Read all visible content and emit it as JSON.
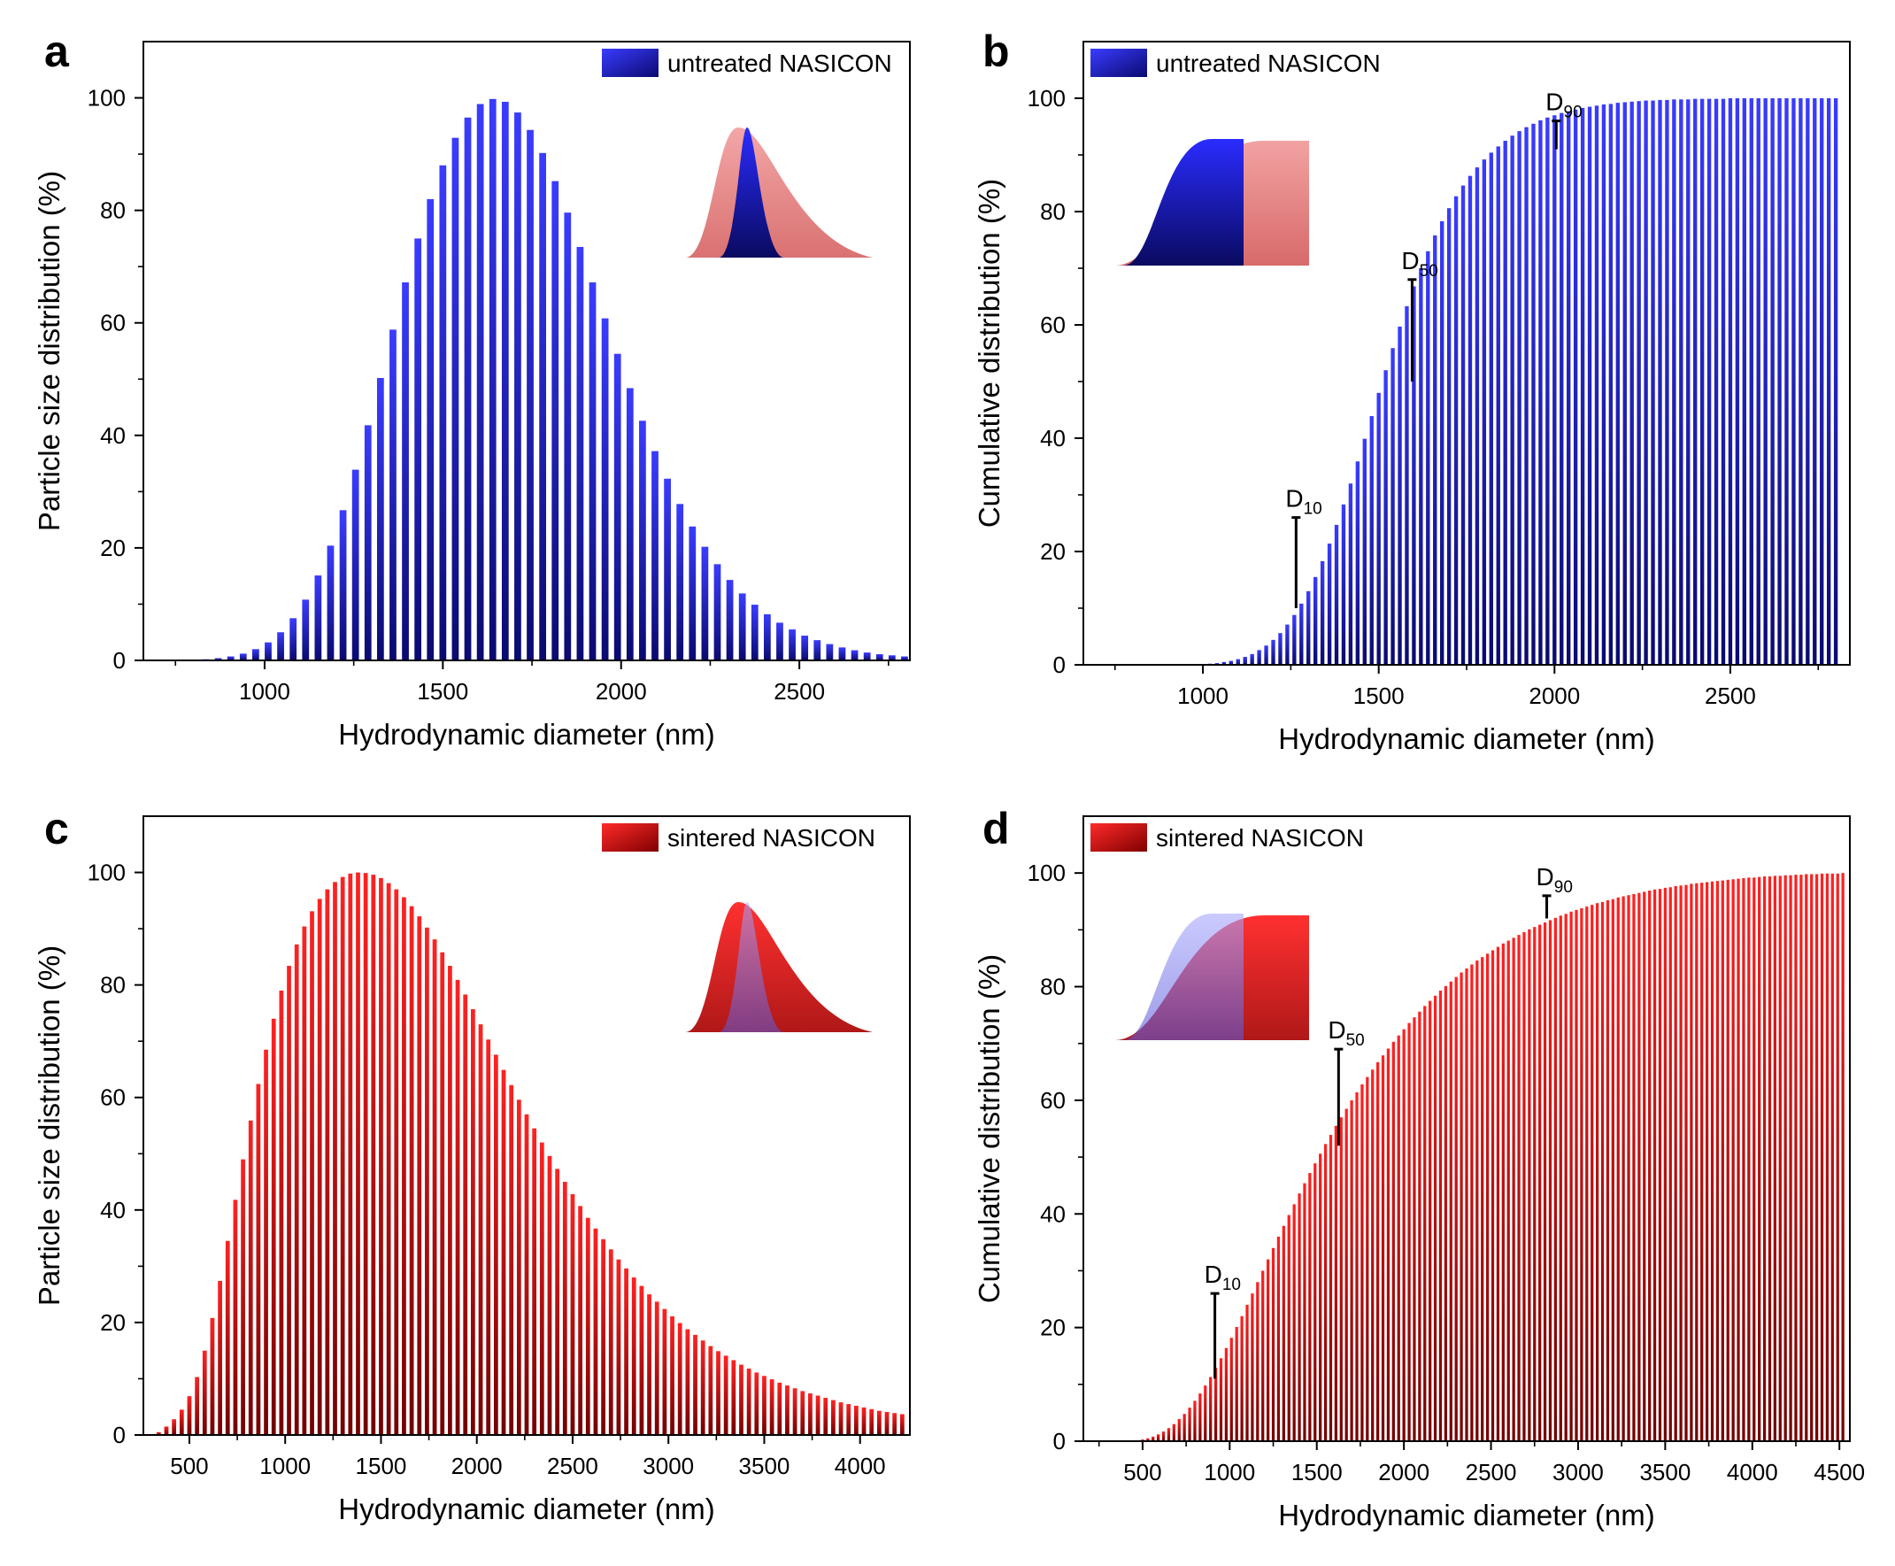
{
  "colors": {
    "blue_light": "#3a3cff",
    "blue_dark": "#0a0a78",
    "red_light": "#ff2020",
    "red_dark": "#7a0000",
    "inset_red": "#f08080",
    "inset_blue": "#6b6bff"
  },
  "chart_data": [
    {
      "id": "a",
      "panel_letter": "a",
      "type": "bar",
      "kind": "distribution",
      "series_name": "untreated NASICON",
      "color": "blue",
      "xlabel": "Hydrodynamic diameter (nm)",
      "ylabel": "Particle size distribution (%)",
      "xlim": [
        660,
        2810
      ],
      "ylim": [
        0,
        110
      ],
      "xticks": [
        1000,
        1500,
        2000,
        2500
      ],
      "xminor": [
        750,
        1250,
        1750,
        2250,
        2750
      ],
      "yticks": [
        0,
        20,
        40,
        60,
        80,
        100
      ],
      "yminor": [
        10,
        30,
        50,
        70,
        90
      ],
      "legend_position": "top-right",
      "inset": "distribution-comparison",
      "x": [
        800,
        835,
        870,
        905,
        940,
        975,
        1010,
        1045,
        1080,
        1115,
        1150,
        1185,
        1220,
        1255,
        1290,
        1325,
        1360,
        1395,
        1430,
        1465,
        1500,
        1535,
        1570,
        1605,
        1640,
        1675,
        1710,
        1745,
        1780,
        1815,
        1850,
        1885,
        1920,
        1955,
        1990,
        2025,
        2060,
        2095,
        2130,
        2165,
        2200,
        2235,
        2270,
        2305,
        2340,
        2375,
        2410,
        2445,
        2480,
        2515,
        2550,
        2585,
        2620,
        2655,
        2690,
        2725,
        2760,
        2795
      ],
      "values": [
        0.1,
        0.2,
        0.4,
        0.7,
        1.2,
        2.0,
        3.2,
        5.0,
        7.5,
        10.8,
        15.1,
        20.4,
        26.7,
        33.9,
        41.8,
        50.2,
        58.8,
        67.2,
        75.0,
        82.0,
        88.0,
        92.9,
        96.5,
        98.9,
        99.8,
        99.3,
        97.4,
        94.3,
        90.2,
        85.2,
        79.6,
        73.5,
        67.2,
        60.8,
        54.5,
        48.4,
        42.6,
        37.2,
        32.3,
        27.8,
        23.8,
        20.2,
        17.1,
        14.3,
        11.9,
        9.9,
        8.2,
        6.7,
        5.5,
        4.4,
        3.6,
        2.9,
        2.3,
        1.8,
        1.4,
        1.1,
        0.9,
        0.7
      ]
    },
    {
      "id": "b",
      "panel_letter": "b",
      "type": "bar",
      "kind": "cumulative",
      "series_name": "untreated NASICON",
      "color": "blue",
      "xlabel": "Hydrodynamic diameter (nm)",
      "ylabel": "Cumulative distribution (%)",
      "xlim": [
        660,
        2840
      ],
      "ylim": [
        0,
        110
      ],
      "xticks": [
        1000,
        1500,
        2000,
        2500
      ],
      "xminor": [
        750,
        1250,
        1750,
        2250,
        2750
      ],
      "yticks": [
        0,
        20,
        40,
        60,
        80,
        100
      ],
      "yminor": [
        10,
        30,
        50,
        70,
        90
      ],
      "legend_position": "top-left",
      "inset": "cumulative-comparison",
      "x": [
        1000,
        1020,
        1040,
        1060,
        1080,
        1100,
        1120,
        1140,
        1160,
        1180,
        1200,
        1220,
        1240,
        1260,
        1280,
        1300,
        1320,
        1340,
        1360,
        1380,
        1400,
        1420,
        1440,
        1460,
        1480,
        1500,
        1520,
        1540,
        1560,
        1580,
        1600,
        1620,
        1640,
        1660,
        1680,
        1700,
        1720,
        1740,
        1760,
        1780,
        1800,
        1820,
        1840,
        1860,
        1880,
        1900,
        1920,
        1940,
        1960,
        1980,
        2000,
        2020,
        2040,
        2060,
        2080,
        2100,
        2120,
        2140,
        2160,
        2180,
        2200,
        2220,
        2240,
        2260,
        2280,
        2300,
        2320,
        2340,
        2360,
        2380,
        2400,
        2420,
        2440,
        2460,
        2480,
        2500,
        2520,
        2540,
        2560,
        2580,
        2600,
        2620,
        2640,
        2660,
        2680,
        2700,
        2720,
        2740,
        2760,
        2780,
        2800
      ],
      "values": [
        0.1,
        0.2,
        0.3,
        0.5,
        0.7,
        1.0,
        1.4,
        1.9,
        2.6,
        3.4,
        4.4,
        5.6,
        7.1,
        8.8,
        10.8,
        13.0,
        15.5,
        18.3,
        21.4,
        24.7,
        28.3,
        32.0,
        35.9,
        39.9,
        43.9,
        48.0,
        52.0,
        55.9,
        59.7,
        63.3,
        66.8,
        70.0,
        73.0,
        75.8,
        78.3,
        80.6,
        82.7,
        84.6,
        86.3,
        87.8,
        89.2,
        90.4,
        91.5,
        92.5,
        93.4,
        94.2,
        94.9,
        95.5,
        96.1,
        96.6,
        97.0,
        97.4,
        97.7,
        98.0,
        98.3,
        98.5,
        98.7,
        98.9,
        99.0,
        99.2,
        99.3,
        99.4,
        99.5,
        99.6,
        99.6,
        99.7,
        99.7,
        99.8,
        99.8,
        99.8,
        99.9,
        99.9,
        99.9,
        99.9,
        99.9,
        100,
        100,
        100,
        100,
        100,
        100,
        100,
        100,
        100,
        100,
        100,
        100,
        100,
        100,
        100,
        100
      ],
      "annotations": [
        {
          "label": "D",
          "sub": "10",
          "x": 1265,
          "y_top": 26,
          "y_bottom": 10
        },
        {
          "label": "D",
          "sub": "50",
          "x": 1595,
          "y_top": 68,
          "y_bottom": 50
        },
        {
          "label": "D",
          "sub": "90",
          "x": 2005,
          "y_top": 96,
          "y_bottom": 91
        }
      ]
    },
    {
      "id": "c",
      "panel_letter": "c",
      "type": "bar",
      "kind": "distribution",
      "series_name": "sintered NASICON",
      "color": "red",
      "xlabel": "Hydrodynamic diameter (nm)",
      "ylabel": "Particle size distribution (%)",
      "xlim": [
        260,
        4260
      ],
      "ylim": [
        0,
        110
      ],
      "xticks": [
        500,
        1000,
        1500,
        2000,
        2500,
        3000,
        3500,
        4000
      ],
      "xminor": [
        750,
        1250,
        1750,
        2250,
        2750,
        3250,
        3750
      ],
      "yticks": [
        0,
        20,
        40,
        60,
        80,
        100
      ],
      "yminor": [
        10,
        30,
        50,
        70,
        90
      ],
      "legend_position": "top-right",
      "inset": "distribution-comparison",
      "x": [
        340,
        380,
        420,
        460,
        500,
        540,
        580,
        620,
        660,
        700,
        740,
        780,
        820,
        860,
        900,
        940,
        980,
        1020,
        1060,
        1100,
        1140,
        1180,
        1220,
        1260,
        1300,
        1340,
        1380,
        1420,
        1460,
        1500,
        1540,
        1580,
        1620,
        1660,
        1700,
        1740,
        1780,
        1820,
        1860,
        1900,
        1940,
        1980,
        2020,
        2060,
        2100,
        2140,
        2180,
        2220,
        2260,
        2300,
        2340,
        2380,
        2420,
        2460,
        2500,
        2540,
        2580,
        2620,
        2660,
        2700,
        2740,
        2780,
        2820,
        2860,
        2900,
        2940,
        2980,
        3020,
        3060,
        3100,
        3140,
        3180,
        3220,
        3260,
        3300,
        3340,
        3380,
        3420,
        3460,
        3500,
        3540,
        3580,
        3620,
        3660,
        3700,
        3740,
        3780,
        3820,
        3860,
        3900,
        3940,
        3980,
        4020,
        4060,
        4100,
        4140,
        4180,
        4220
      ],
      "values": [
        0.5,
        1.5,
        2.8,
        4.5,
        6.9,
        10.3,
        15.0,
        20.8,
        27.4,
        34.5,
        41.8,
        49.0,
        55.9,
        62.4,
        68.5,
        74.0,
        79.0,
        83.4,
        87.2,
        90.4,
        93.1,
        95.3,
        97.0,
        98.3,
        99.2,
        99.8,
        100,
        99.9,
        99.6,
        99.0,
        98.1,
        97.0,
        95.6,
        94.0,
        92.2,
        90.2,
        88.1,
        85.8,
        83.4,
        80.9,
        78.3,
        75.7,
        73.0,
        70.3,
        67.6,
        64.9,
        62.2,
        59.6,
        57.0,
        54.5,
        52.0,
        49.6,
        47.3,
        45.0,
        42.8,
        40.7,
        38.6,
        36.7,
        34.8,
        33.0,
        31.2,
        29.6,
        28.0,
        26.5,
        25.0,
        23.7,
        22.4,
        21.1,
        19.9,
        18.8,
        17.8,
        16.8,
        15.8,
        14.9,
        14.1,
        13.3,
        12.5,
        11.8,
        11.1,
        10.5,
        9.9,
        9.3,
        8.8,
        8.3,
        7.8,
        7.4,
        7.0,
        6.6,
        6.2,
        5.8,
        5.5,
        5.2,
        4.9,
        4.6,
        4.3,
        4.1,
        3.9,
        3.7
      ]
    },
    {
      "id": "d",
      "panel_letter": "d",
      "type": "bar",
      "kind": "cumulative",
      "series_name": "sintered NASICON",
      "color": "red",
      "xlabel": "Hydrodynamic diameter (nm)",
      "ylabel": "Cumulative distribution (%)",
      "xlim": [
        160,
        4560
      ],
      "ylim": [
        0,
        110
      ],
      "xticks": [
        500,
        1000,
        1500,
        2000,
        2500,
        3000,
        3500,
        4000,
        4500
      ],
      "xminor": [
        250,
        750,
        1250,
        1750,
        2250,
        2750,
        3250,
        3750,
        4250
      ],
      "yticks": [
        0,
        20,
        40,
        60,
        80,
        100
      ],
      "yminor": [
        10,
        30,
        50,
        70,
        90
      ],
      "legend_position": "top-left",
      "inset": "cumulative-comparison",
      "x": [
        500,
        530,
        560,
        590,
        620,
        650,
        680,
        710,
        740,
        770,
        800,
        830,
        860,
        890,
        920,
        950,
        980,
        1010,
        1040,
        1070,
        1100,
        1130,
        1160,
        1190,
        1220,
        1250,
        1280,
        1310,
        1340,
        1370,
        1400,
        1430,
        1460,
        1490,
        1520,
        1550,
        1580,
        1610,
        1640,
        1670,
        1700,
        1730,
        1760,
        1790,
        1820,
        1850,
        1880,
        1910,
        1940,
        1970,
        2000,
        2030,
        2060,
        2090,
        2120,
        2150,
        2180,
        2210,
        2240,
        2270,
        2300,
        2330,
        2360,
        2390,
        2420,
        2450,
        2480,
        2510,
        2540,
        2570,
        2600,
        2630,
        2660,
        2690,
        2720,
        2750,
        2780,
        2810,
        2840,
        2870,
        2900,
        2930,
        2960,
        2990,
        3020,
        3050,
        3080,
        3110,
        3140,
        3170,
        3200,
        3230,
        3260,
        3290,
        3320,
        3350,
        3380,
        3410,
        3440,
        3470,
        3500,
        3530,
        3560,
        3590,
        3620,
        3650,
        3680,
        3710,
        3740,
        3770,
        3800,
        3830,
        3860,
        3890,
        3920,
        3950,
        3980,
        4010,
        4040,
        4070,
        4100,
        4130,
        4160,
        4190,
        4220,
        4250,
        4280,
        4310,
        4340,
        4370,
        4400,
        4430,
        4460,
        4490,
        4520
      ],
      "values": [
        0.3,
        0.5,
        0.8,
        1.2,
        1.7,
        2.3,
        3.0,
        3.9,
        4.8,
        5.9,
        7.1,
        8.4,
        9.8,
        11.3,
        12.9,
        14.6,
        16.4,
        18.2,
        20.1,
        22.0,
        24.0,
        26.0,
        28.0,
        30.0,
        32.0,
        34.0,
        36.0,
        37.9,
        39.8,
        41.7,
        43.6,
        45.4,
        47.2,
        48.9,
        50.6,
        52.3,
        53.9,
        55.5,
        57.0,
        58.5,
        60.0,
        61.4,
        62.8,
        64.1,
        65.4,
        66.7,
        67.9,
        69.1,
        70.3,
        71.4,
        72.5,
        73.6,
        74.6,
        75.6,
        76.6,
        77.5,
        78.4,
        79.3,
        80.1,
        80.9,
        81.7,
        82.5,
        83.2,
        83.9,
        84.6,
        85.2,
        85.8,
        86.4,
        87.0,
        87.6,
        88.1,
        88.6,
        89.1,
        89.6,
        90.1,
        90.5,
        90.9,
        91.3,
        91.7,
        92.1,
        92.5,
        92.8,
        93.2,
        93.5,
        93.8,
        94.1,
        94.4,
        94.7,
        94.9,
        95.2,
        95.4,
        95.7,
        95.9,
        96.1,
        96.3,
        96.5,
        96.7,
        96.9,
        97.1,
        97.2,
        97.4,
        97.5,
        97.7,
        97.8,
        97.9,
        98.1,
        98.2,
        98.3,
        98.4,
        98.5,
        98.6,
        98.7,
        98.8,
        98.9,
        99.0,
        99.1,
        99.2,
        99.2,
        99.3,
        99.4,
        99.4,
        99.5,
        99.5,
        99.6,
        99.6,
        99.7,
        99.7,
        99.8,
        99.8,
        99.8,
        99.9,
        99.9,
        99.9,
        99.9,
        100
      ],
      "annotations": [
        {
          "label": "D",
          "sub": "10",
          "x": 915,
          "y_top": 26,
          "y_bottom": 11
        },
        {
          "label": "D",
          "sub": "50",
          "x": 1625,
          "y_top": 69,
          "y_bottom": 52
        },
        {
          "label": "D",
          "sub": "90",
          "x": 2820,
          "y_top": 96,
          "y_bottom": 92
        }
      ]
    }
  ]
}
